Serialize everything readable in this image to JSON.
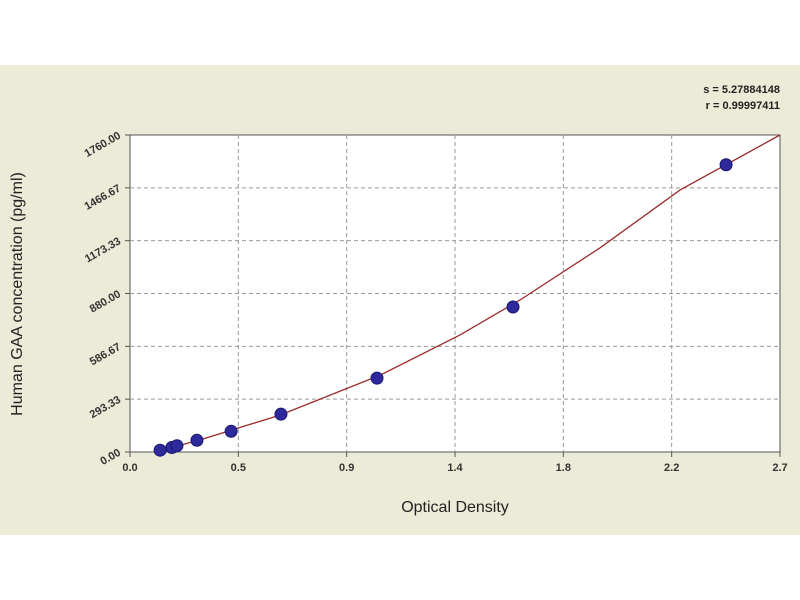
{
  "chart_data": {
    "type": "scatter",
    "x_label": "Optical Density",
    "y_label": "Human GAA concentration (pg/ml)",
    "annotations": [
      "s = 5.27884148",
      "r = 0.99997411"
    ],
    "x": [
      0.125,
      0.174,
      0.195,
      0.278,
      0.42,
      0.627,
      1.026,
      1.591,
      2.476
    ],
    "values": [
      10,
      25,
      35,
      65,
      115,
      210,
      410,
      805,
      1595
    ],
    "color": "#2e2a9c",
    "curve": {
      "x": [
        0.104,
        0.291,
        0.623,
        1.04,
        1.371,
        1.62,
        1.952,
        2.285,
        2.7
      ],
      "y": [
        0,
        67,
        205,
        427,
        650,
        844,
        1133,
        1455,
        1760
      ],
      "color": "#9b2a2a"
    },
    "xlim": [
      0,
      2.7
    ],
    "ylim": [
      0,
      1760
    ],
    "xticks": [
      {
        "value": 0,
        "label": "0.0"
      },
      {
        "value": 0.45,
        "label": "0.5"
      },
      0.9,
      {
        "value": 1.35,
        "label": "1.4"
      },
      1.8,
      {
        "value": 2.25,
        "label": "2.2"
      },
      2.7
    ],
    "yticks": [
      {
        "value": 0,
        "label": "0.00"
      },
      {
        "value": 293.33,
        "label": "293.33"
      },
      {
        "value": 586.67,
        "label": "586.67"
      },
      {
        "value": 880,
        "label": "880.00"
      },
      {
        "value": 1173.33,
        "label": "1173.33"
      },
      {
        "value": 1466.67,
        "label": "1466.67"
      },
      {
        "value": 1760,
        "label": "1760.00"
      }
    ],
    "grid": true
  }
}
